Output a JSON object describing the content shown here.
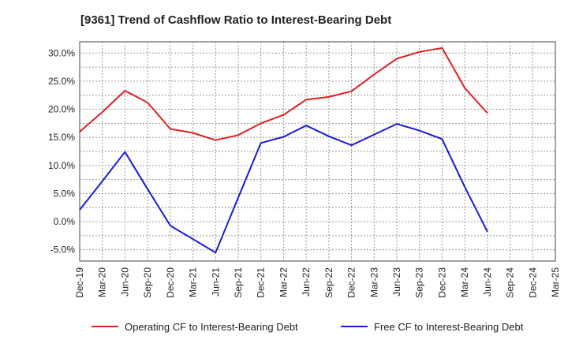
{
  "chart_data": {
    "type": "line",
    "title": "[9361]  Trend of Cashflow Ratio to Interest-Bearing Debt",
    "xlabel": "",
    "ylabel": "",
    "categories": [
      "Dec-19",
      "Mar-20",
      "Jun-20",
      "Sep-20",
      "Dec-20",
      "Mar-21",
      "Jun-21",
      "Sep-21",
      "Dec-21",
      "Mar-22",
      "Jun-22",
      "Sep-22",
      "Dec-22",
      "Mar-23",
      "Jun-23",
      "Sep-23",
      "Dec-23",
      "Mar-24",
      "Jun-24",
      "Sep-24",
      "Dec-24",
      "Mar-25"
    ],
    "ylim": [
      -7,
      32
    ],
    "yticks": [
      -5,
      0,
      5,
      10,
      15,
      20,
      25,
      30
    ],
    "ytick_labels": [
      "-5.0%",
      "0.0%",
      "5.0%",
      "10.0%",
      "15.0%",
      "20.0%",
      "25.0%",
      "30.0%"
    ],
    "grid": true,
    "legend_position": "bottom",
    "series": [
      {
        "name": "Operating CF to Interest-Bearing Debt",
        "color": "#e02020",
        "values": [
          16.0,
          19.5,
          23.3,
          21.2,
          16.5,
          15.8,
          14.5,
          15.4,
          17.5,
          19.0,
          21.7,
          22.2,
          23.2,
          26.2,
          29.0,
          30.2,
          30.9,
          23.8,
          19.3,
          null,
          null,
          null
        ]
      },
      {
        "name": "Free CF to Interest-Bearing Debt",
        "color": "#1a1adc",
        "values": [
          2.1,
          7.2,
          12.4,
          5.8,
          -0.7,
          -3.1,
          -5.5,
          4.3,
          14.0,
          15.1,
          17.1,
          15.2,
          13.6,
          15.5,
          17.4,
          16.2,
          14.7,
          6.2,
          -1.8,
          null,
          null,
          null
        ]
      }
    ]
  }
}
